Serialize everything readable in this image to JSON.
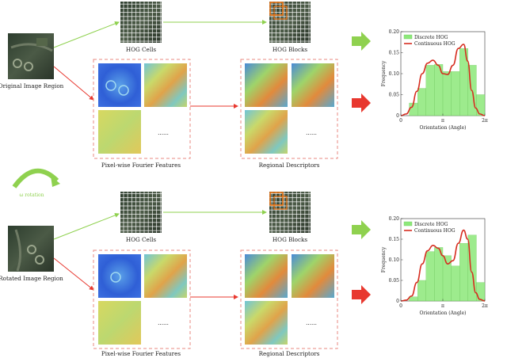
{
  "labels": {
    "original_region": "Original Image Region",
    "rotated_region": "Rotated Image Region",
    "rotation": "ω rotation",
    "hog_cells": "HOG Cells",
    "hog_blocks": "HOG Blocks",
    "fourier_features": "Pixel-wise Fourier Features",
    "regional_descriptors": "Regional Descriptors",
    "ellipsis": "......"
  },
  "colors": {
    "green_arrow": "#8fd14f",
    "red_arrow": "#e8382f",
    "green_line": "#8fd14f",
    "red_line": "#e8382f",
    "dashed_box": "#e88a80",
    "hog_bar": "#8de87a",
    "hog_curve": "#d62d20",
    "block_highlight": "#f07a1a"
  },
  "icons": {
    "green_arrow": "right-arrow-icon",
    "red_arrow": "right-arrow-icon",
    "rotation": "curved-arrow-icon"
  },
  "chart_data": [
    {
      "type": "bar",
      "title": "",
      "xlabel": "Orientation (Angle)",
      "ylabel": "Frequency",
      "xlim": [
        0,
        6.2832
      ],
      "ylim": [
        0,
        0.2
      ],
      "x_ticks": [
        "0",
        "π",
        "2π"
      ],
      "y_ticks": [
        "0",
        "0.05",
        "0.10",
        "0.15",
        "0.20"
      ],
      "legend": {
        "placement": "top-left"
      },
      "series": [
        {
          "name": "Discrete HOG",
          "kind": "bar",
          "bin_edges": [
            0,
            0.628,
            1.257,
            1.885,
            2.513,
            3.142,
            3.77,
            4.398,
            5.027,
            5.655,
            6.283
          ],
          "values": [
            0.0,
            0.03,
            0.065,
            0.12,
            0.122,
            0.105,
            0.105,
            0.16,
            0.12,
            0.05
          ]
        },
        {
          "name": "Continuous HOG",
          "kind": "line",
          "x": [
            0,
            0.4,
            0.8,
            1.2,
            1.6,
            2.0,
            2.4,
            2.8,
            3.14,
            3.5,
            3.9,
            4.3,
            4.7,
            5.0,
            5.3,
            5.6,
            5.9,
            6.28
          ],
          "y": [
            0.0,
            0.004,
            0.02,
            0.058,
            0.1,
            0.125,
            0.132,
            0.12,
            0.1,
            0.098,
            0.12,
            0.16,
            0.17,
            0.13,
            0.06,
            0.018,
            0.004,
            0.0
          ]
        }
      ]
    },
    {
      "type": "bar",
      "title": "",
      "xlabel": "Orientation (Angle)",
      "ylabel": "Frequency",
      "xlim": [
        0,
        6.2832
      ],
      "ylim": [
        0,
        0.2
      ],
      "x_ticks": [
        "0",
        "π",
        "2π"
      ],
      "y_ticks": [
        "0",
        "0.05",
        "0.10",
        "0.15",
        "0.20"
      ],
      "legend": {
        "placement": "top-left"
      },
      "series": [
        {
          "name": "Discrete HOG",
          "kind": "bar",
          "bin_edges": [
            0,
            0.628,
            1.257,
            1.885,
            2.513,
            3.142,
            3.77,
            4.398,
            5.027,
            5.655,
            6.283
          ],
          "values": [
            0.0,
            0.01,
            0.05,
            0.12,
            0.13,
            0.11,
            0.085,
            0.14,
            0.16,
            0.045
          ]
        },
        {
          "name": "Continuous HOG",
          "kind": "line",
          "x": [
            0,
            0.4,
            0.8,
            1.2,
            1.6,
            2.0,
            2.4,
            2.8,
            3.14,
            3.5,
            3.9,
            4.3,
            4.7,
            5.0,
            5.3,
            5.6,
            5.9,
            6.28
          ],
          "y": [
            0.0,
            0.002,
            0.012,
            0.045,
            0.09,
            0.122,
            0.135,
            0.128,
            0.11,
            0.09,
            0.098,
            0.14,
            0.172,
            0.15,
            0.07,
            0.02,
            0.004,
            0.0
          ]
        }
      ]
    }
  ]
}
